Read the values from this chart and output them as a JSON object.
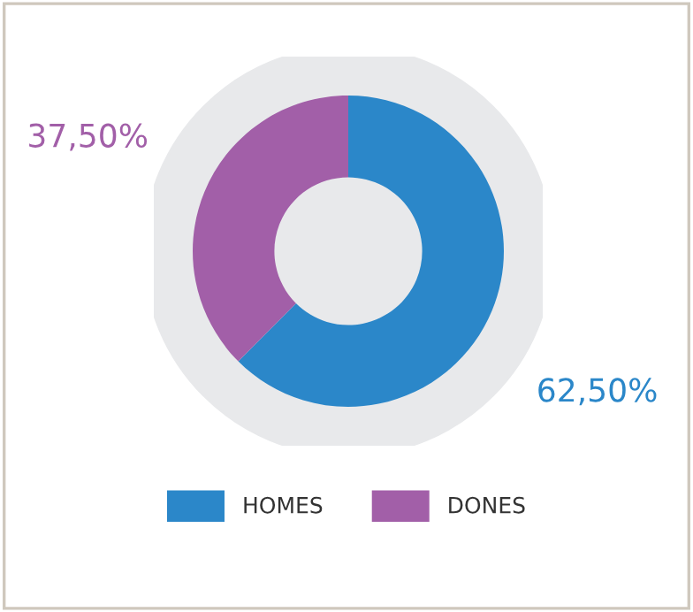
{
  "chart_data": {
    "type": "donut",
    "categories": [
      "HOMES",
      "DONES"
    ],
    "values": [
      62.5,
      37.5
    ],
    "colors": [
      "#2b87c9",
      "#a25fa8"
    ],
    "value_labels": [
      "62,50%",
      "37,50%"
    ],
    "legend": "bottom"
  }
}
